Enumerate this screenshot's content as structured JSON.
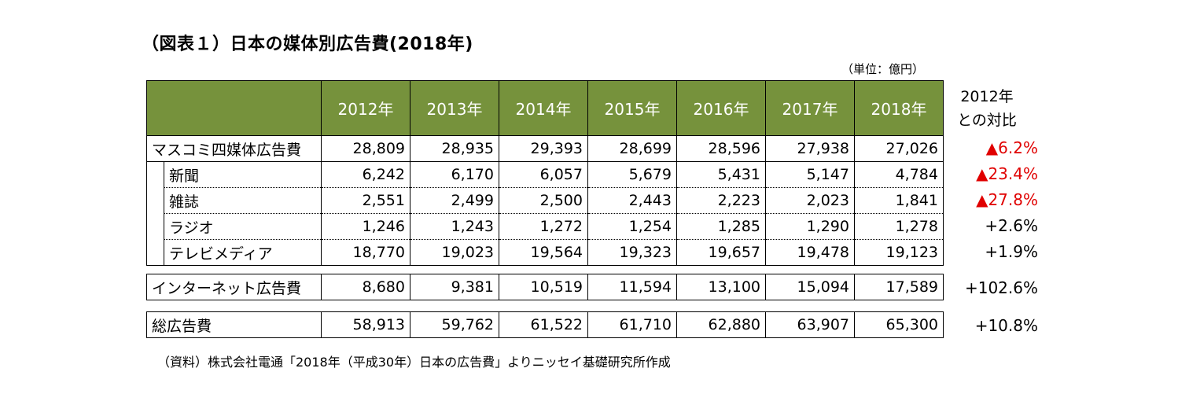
{
  "title": "（図表１）日本の媒体別広告費(2018年)",
  "unit": "（単位：億円）",
  "years": [
    "2012年",
    "2013年",
    "2014年",
    "2015年",
    "2016年",
    "2017年",
    "2018年"
  ],
  "comparison_header": {
    "line1": "2012年",
    "line2": "との対比"
  },
  "mass_total": {
    "label": "マスコミ四媒体広告費",
    "values": [
      "28,809",
      "28,935",
      "29,393",
      "28,699",
      "28,596",
      "27,938",
      "27,026"
    ],
    "change": "▲6.2%"
  },
  "sub_rows": [
    {
      "label": "新聞",
      "values": [
        "6,242",
        "6,170",
        "6,057",
        "5,679",
        "5,431",
        "5,147",
        "4,784"
      ],
      "change": "▲23.4%"
    },
    {
      "label": "雑誌",
      "values": [
        "2,551",
        "2,499",
        "2,500",
        "2,443",
        "2,223",
        "2,023",
        "1,841"
      ],
      "change": "▲27.8%"
    },
    {
      "label": "ラジオ",
      "values": [
        "1,246",
        "1,243",
        "1,272",
        "1,254",
        "1,285",
        "1,290",
        "1,278"
      ],
      "change": "+2.6%"
    },
    {
      "label": "テレビメディア",
      "values": [
        "18,770",
        "19,023",
        "19,564",
        "19,323",
        "19,657",
        "19,478",
        "19,123"
      ],
      "change": "+1.9%"
    }
  ],
  "internet": {
    "label": "インターネット広告費",
    "values": [
      "8,680",
      "9,381",
      "10,519",
      "11,594",
      "13,100",
      "15,094",
      "17,589"
    ],
    "change": "+102.6%"
  },
  "grand_total": {
    "label": "総広告費",
    "values": [
      "58,913",
      "59,762",
      "61,522",
      "61,710",
      "62,880",
      "63,907",
      "65,300"
    ],
    "change": "+10.8%"
  },
  "source": "（資料）株式会社電通「2018年（平成30年）日本の広告費」よりニッセイ基礎研究所作成",
  "colors": {
    "header_bg": "#76923c",
    "header_text": "#ffffff",
    "negative": "#e00000"
  }
}
